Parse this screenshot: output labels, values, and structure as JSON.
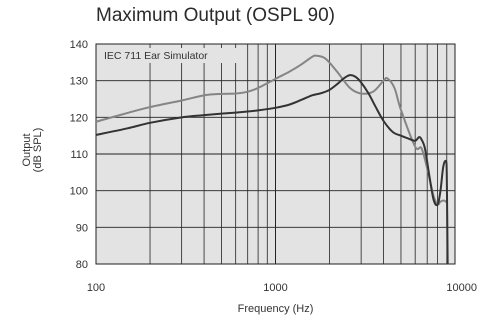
{
  "chart_data": {
    "type": "line",
    "title": "Maximum Output (OSPL 90)",
    "xlabel": "Frequency (Hz)",
    "ylabel": [
      "Output",
      "(dB SPL)"
    ],
    "annotation": "IEC 711 Ear Simulator",
    "x_scale": "log",
    "xlim": [
      100,
      10000
    ],
    "ylim": [
      80,
      140
    ],
    "x_ticks": [
      100,
      1000,
      10000
    ],
    "x_tick_labels": [
      "100",
      "1000",
      "10000"
    ],
    "y_ticks": [
      80,
      90,
      100,
      110,
      120,
      130,
      140
    ],
    "y_tick_labels": [
      "80",
      "90",
      "100",
      "110",
      "120",
      "130",
      "140"
    ],
    "grid": true,
    "plot_background": "#e3e3e3",
    "series": [
      {
        "color": "#858585",
        "x": [
          100,
          150,
          200,
          300,
          400,
          500,
          600,
          700,
          800,
          1000,
          1200,
          1400,
          1600,
          1700,
          1900,
          2200,
          2600,
          3000,
          3500,
          4000,
          4200,
          4600,
          5000,
          6000,
          6500,
          7000,
          7600,
          8000,
          8300,
          8700,
          9000
        ],
        "y": [
          118.8,
          121.2,
          122.8,
          124.6,
          126,
          126.4,
          126.5,
          127,
          128,
          130.5,
          132.5,
          134.5,
          136.5,
          136.8,
          136,
          132.5,
          128,
          126.5,
          127,
          130,
          130.6,
          128,
          122,
          112,
          111.6,
          106,
          98.5,
          96.3,
          97,
          97.3,
          96.8
        ]
      },
      {
        "color": "#333333",
        "x": [
          100,
          150,
          200,
          300,
          400,
          500,
          600,
          700,
          800,
          1000,
          1200,
          1400,
          1600,
          1800,
          2000,
          2200,
          2400,
          2600,
          2800,
          3000,
          3300,
          3600,
          4000,
          4500,
          5000,
          5500,
          6000,
          6300,
          6500,
          6800,
          7200,
          7600,
          8000,
          8300,
          8600,
          8900,
          9000,
          9100
        ],
        "y": [
          115.2,
          117,
          118.5,
          120,
          120.6,
          121,
          121.3,
          121.6,
          121.9,
          122.6,
          123.5,
          124.8,
          126,
          126.6,
          127.5,
          129,
          130.6,
          131.5,
          131,
          129.5,
          126.5,
          123,
          119,
          116,
          115,
          114.2,
          113.6,
          114.6,
          114,
          111.5,
          104,
          97.5,
          96.2,
          100,
          106.5,
          108,
          104,
          80
        ]
      }
    ]
  }
}
